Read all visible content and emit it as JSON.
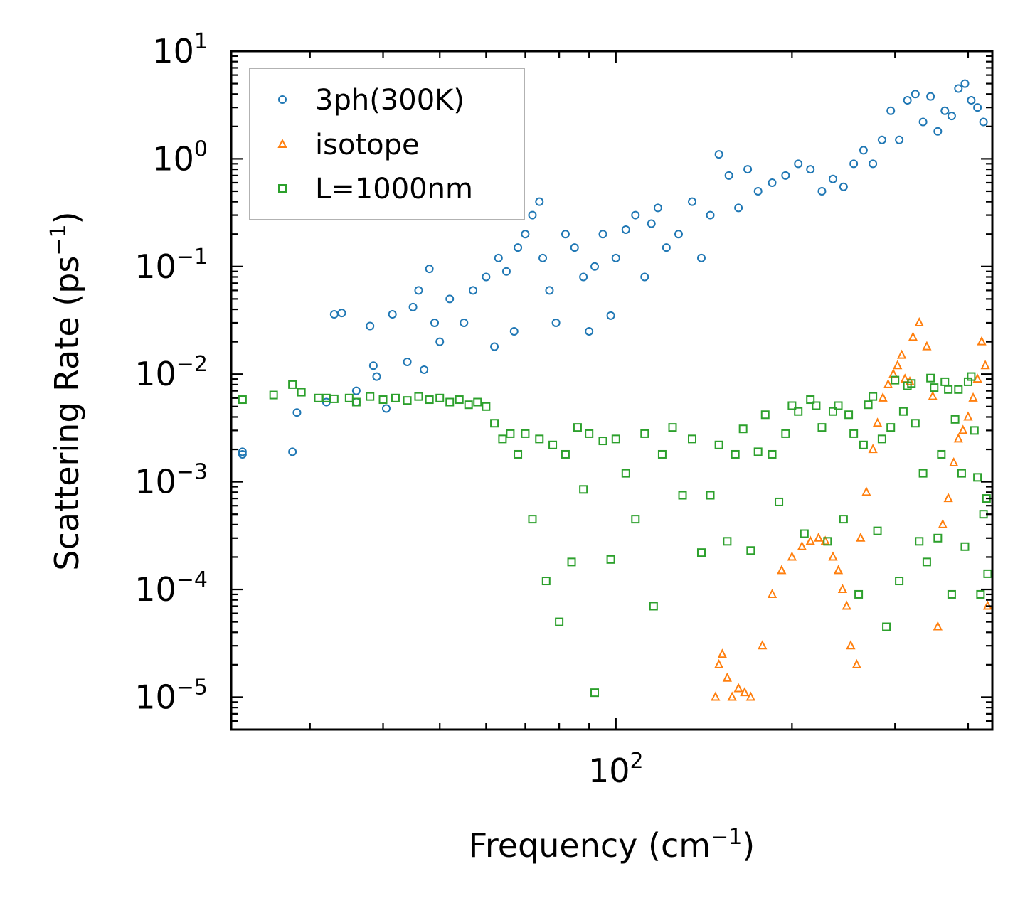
{
  "chart_data": {
    "type": "scatter",
    "title": "",
    "xlabel": "Frequency (cm",
    "xlabel_exp": "−1",
    "xlabel_tail": ")",
    "ylabel": "Scattering Rate (ps",
    "ylabel_exp": "−1",
    "ylabel_tail": ")",
    "xscale": "log",
    "yscale": "log",
    "xlim": [
      22,
      440
    ],
    "ylim": [
      5e-06,
      10
    ],
    "x_tick_labels": [
      {
        "value": 100,
        "base": "10",
        "exp": "2"
      }
    ],
    "y_tick_labels": [
      {
        "value": 10,
        "base": "10",
        "exp": "1"
      },
      {
        "value": 1,
        "base": "10",
        "exp": "0"
      },
      {
        "value": 0.1,
        "base": "10",
        "exp": "−1"
      },
      {
        "value": 0.01,
        "base": "10",
        "exp": "−2"
      },
      {
        "value": 0.001,
        "base": "10",
        "exp": "−3"
      },
      {
        "value": 0.0001,
        "base": "10",
        "exp": "−4"
      },
      {
        "value": 1e-05,
        "base": "10",
        "exp": "−5"
      }
    ],
    "legend_position": "top-left",
    "series": [
      {
        "name": "3ph(300K)",
        "marker": "circle",
        "color": "#1f77b4",
        "x": [
          23,
          23,
          28,
          28.5,
          32,
          33,
          34,
          36,
          36,
          38,
          38.5,
          39,
          40.5,
          41.5,
          44,
          45,
          46,
          47,
          48,
          49,
          50,
          52,
          55,
          57,
          60,
          62,
          63,
          65,
          67,
          68,
          70,
          72,
          74,
          75,
          77,
          79,
          82,
          85,
          88,
          90,
          92,
          95,
          98,
          100,
          104,
          108,
          112,
          115,
          118,
          122,
          128,
          135,
          140,
          145,
          150,
          156,
          162,
          168,
          175,
          185,
          195,
          205,
          215,
          225,
          235,
          245,
          255,
          265,
          275,
          285,
          295,
          305,
          315,
          325,
          335,
          345,
          355,
          365,
          375,
          385,
          395,
          405,
          415,
          425
        ],
        "y": [
          0.0019,
          0.0018,
          0.0019,
          0.0044,
          0.0055,
          0.036,
          0.037,
          0.0055,
          0.007,
          0.028,
          0.012,
          0.0095,
          0.0048,
          0.036,
          0.013,
          0.042,
          0.06,
          0.011,
          0.095,
          0.03,
          0.02,
          0.05,
          0.03,
          0.06,
          0.08,
          0.018,
          0.12,
          0.09,
          0.025,
          0.15,
          0.2,
          0.3,
          0.4,
          0.12,
          0.06,
          0.03,
          0.2,
          0.15,
          0.08,
          0.025,
          0.1,
          0.2,
          0.035,
          0.12,
          0.22,
          0.3,
          0.08,
          0.25,
          0.35,
          0.15,
          0.2,
          0.4,
          0.12,
          0.3,
          1.1,
          0.7,
          0.35,
          0.8,
          0.5,
          0.6,
          0.7,
          0.9,
          0.8,
          0.5,
          0.65,
          0.55,
          0.9,
          1.2,
          0.9,
          1.5,
          2.8,
          1.5,
          3.5,
          4.0,
          2.2,
          3.8,
          1.8,
          2.8,
          2.5,
          4.5,
          5.0,
          3.5,
          3.0,
          2.2
        ]
      },
      {
        "name": "isotope",
        "marker": "triangle",
        "color": "#ff7f0e",
        "x": [
          148,
          150,
          152,
          155,
          158,
          162,
          166,
          170,
          178,
          185,
          192,
          200,
          208,
          215,
          222,
          228,
          235,
          240,
          244,
          248,
          252,
          258,
          262,
          268,
          275,
          280,
          286,
          292,
          298,
          303,
          308,
          312,
          318,
          322,
          330,
          340,
          348,
          355,
          362,
          370,
          378,
          385,
          392,
          400,
          408,
          415,
          422,
          428,
          432
        ],
        "y": [
          1e-05,
          2e-05,
          2.5e-05,
          1.5e-05,
          1e-05,
          1.2e-05,
          1.1e-05,
          1e-05,
          3e-05,
          9e-05,
          0.00015,
          0.0002,
          0.00025,
          0.00028,
          0.0003,
          0.00028,
          0.0002,
          0.00015,
          0.0001,
          7e-05,
          3e-05,
          2e-05,
          0.0003,
          0.0008,
          0.002,
          0.0035,
          0.006,
          0.008,
          0.01,
          0.012,
          0.015,
          0.009,
          0.0085,
          0.022,
          0.03,
          0.018,
          0.0062,
          4.5e-05,
          0.0004,
          0.0007,
          0.0015,
          0.0025,
          0.003,
          0.004,
          0.006,
          0.009,
          0.02,
          0.012,
          7e-05
        ]
      },
      {
        "name": "L=1000nm",
        "marker": "square",
        "color": "#2ca02c",
        "x": [
          23,
          26,
          28,
          29,
          31,
          32,
          33,
          35,
          36,
          38,
          40,
          42,
          44,
          46,
          48,
          50,
          52,
          54,
          56,
          58,
          60,
          62,
          64,
          66,
          68,
          70,
          72,
          74,
          76,
          78,
          80,
          82,
          84,
          86,
          88,
          90,
          92,
          95,
          98,
          100,
          104,
          108,
          112,
          116,
          120,
          125,
          130,
          135,
          140,
          145,
          150,
          155,
          160,
          165,
          170,
          175,
          180,
          185,
          190,
          195,
          200,
          205,
          210,
          215,
          220,
          225,
          230,
          235,
          240,
          245,
          250,
          255,
          260,
          265,
          270,
          275,
          280,
          285,
          290,
          295,
          300,
          305,
          310,
          315,
          320,
          325,
          330,
          335,
          340,
          345,
          350,
          355,
          360,
          365,
          370,
          375,
          380,
          385,
          390,
          395,
          400,
          405,
          410,
          415,
          420,
          425,
          430,
          432
        ],
        "y": [
          0.0058,
          0.0064,
          0.008,
          0.0068,
          0.006,
          0.006,
          0.0059,
          0.006,
          0.0055,
          0.0062,
          0.0058,
          0.006,
          0.0057,
          0.0062,
          0.0058,
          0.006,
          0.0055,
          0.0058,
          0.0052,
          0.0055,
          0.005,
          0.0035,
          0.0025,
          0.0028,
          0.0018,
          0.0028,
          0.00045,
          0.0025,
          0.00012,
          0.0022,
          5e-05,
          0.0018,
          0.00018,
          0.0032,
          0.00085,
          0.0028,
          1.1e-05,
          0.0024,
          0.00019,
          0.0025,
          0.0012,
          0.00045,
          0.0028,
          7e-05,
          0.0018,
          0.0032,
          0.00075,
          0.0025,
          0.00022,
          0.00075,
          0.0022,
          0.00028,
          0.0018,
          0.0031,
          0.00023,
          0.0019,
          0.0042,
          0.0018,
          0.00065,
          0.0028,
          0.0051,
          0.0045,
          0.00033,
          0.0058,
          0.0051,
          0.0032,
          0.00028,
          0.0045,
          0.0051,
          0.00045,
          0.0042,
          0.0028,
          9e-05,
          0.0022,
          0.0052,
          0.0062,
          0.00035,
          0.0025,
          4.5e-05,
          0.0032,
          0.0088,
          0.00012,
          0.0045,
          0.0078,
          0.0082,
          0.0035,
          0.00028,
          0.0012,
          0.00018,
          0.0092,
          0.0075,
          0.0003,
          0.0018,
          0.0085,
          0.0072,
          9e-05,
          0.0038,
          0.0072,
          0.0012,
          0.00025,
          0.0085,
          0.0095,
          0.003,
          0.0011,
          9e-05,
          0.0005,
          0.0007,
          0.00014
        ]
      }
    ]
  }
}
